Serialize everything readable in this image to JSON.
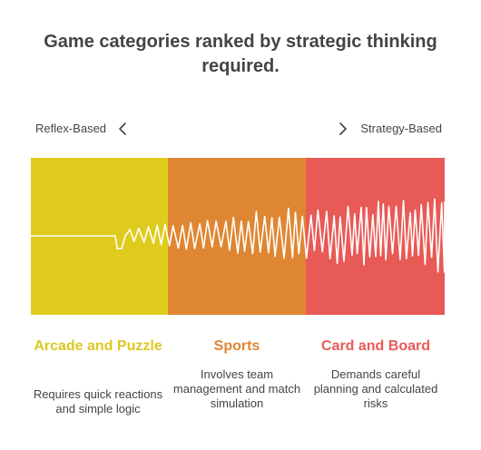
{
  "title": "Game categories ranked by strategic thinking required.",
  "axis": {
    "left_label": "Reflex-Based",
    "right_label": "Strategy-Based"
  },
  "categories": [
    {
      "title": "Arcade and Puzzle",
      "description": "Requires quick reactions and simple logic",
      "fill": "#dfcb1c",
      "title_color": "#dcc822"
    },
    {
      "title": "Sports",
      "description": "Involves team management and match simulation",
      "fill": "#df8632",
      "title_color": "#df8632"
    },
    {
      "title": "Card and Board",
      "description": "Demands careful planning and calculated risks",
      "fill": "#e85a56",
      "title_color": "#e85a56"
    }
  ],
  "icons": {
    "left": "chevron-left-icon",
    "right": "chevron-right-icon"
  },
  "wave_color": "#ffffff"
}
